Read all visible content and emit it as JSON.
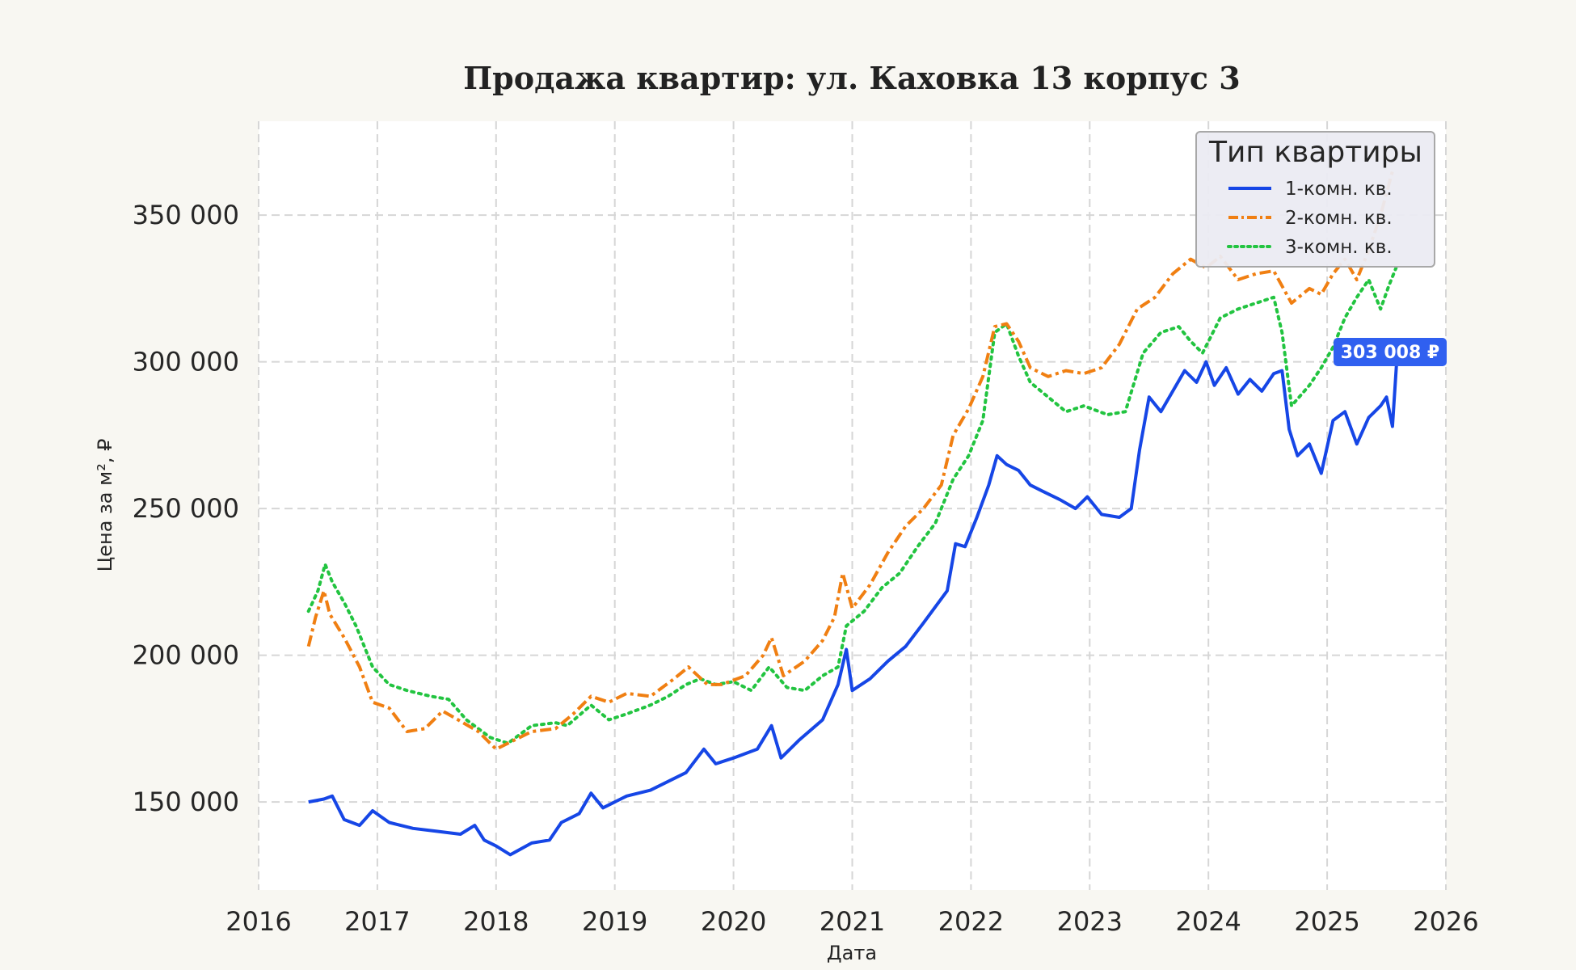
{
  "chart_data": {
    "type": "line",
    "title": "Продажа квартир: ул. Каховка 13 корпус 3",
    "xlabel": "Дата",
    "ylabel": "Цена за м², ₽",
    "xlim": [
      2016,
      2026
    ],
    "ylim": [
      120000,
      382000
    ],
    "x_ticks": [
      "2016",
      "2017",
      "2018",
      "2019",
      "2020",
      "2021",
      "2022",
      "2023",
      "2024",
      "2025",
      "2026"
    ],
    "y_ticks": [
      "150 000",
      "200 000",
      "250 000",
      "300 000",
      "350 000"
    ],
    "y_tick_values": [
      150000,
      200000,
      250000,
      300000,
      350000
    ],
    "grid": true,
    "legend": {
      "title": "Тип квартиры",
      "placement": "top-right"
    },
    "series": [
      {
        "name": "1-комн. кв.",
        "color": "#1646e6",
        "style": "solid",
        "last_label": "303 008 ₽",
        "points": [
          [
            2016.42,
            150000
          ],
          [
            2016.55,
            151000
          ],
          [
            2016.62,
            152000
          ],
          [
            2016.72,
            144000
          ],
          [
            2016.85,
            142000
          ],
          [
            2016.96,
            147000
          ],
          [
            2017.1,
            143000
          ],
          [
            2017.3,
            141000
          ],
          [
            2017.5,
            140000
          ],
          [
            2017.7,
            139000
          ],
          [
            2017.82,
            142000
          ],
          [
            2017.9,
            137000
          ],
          [
            2018.0,
            135000
          ],
          [
            2018.12,
            132000
          ],
          [
            2018.3,
            136000
          ],
          [
            2018.45,
            137000
          ],
          [
            2018.55,
            143000
          ],
          [
            2018.7,
            146000
          ],
          [
            2018.8,
            153000
          ],
          [
            2018.9,
            148000
          ],
          [
            2019.1,
            152000
          ],
          [
            2019.3,
            154000
          ],
          [
            2019.5,
            158000
          ],
          [
            2019.6,
            160000
          ],
          [
            2019.75,
            168000
          ],
          [
            2019.85,
            163000
          ],
          [
            2020.0,
            165000
          ],
          [
            2020.2,
            168000
          ],
          [
            2020.32,
            176000
          ],
          [
            2020.4,
            165000
          ],
          [
            2020.55,
            171000
          ],
          [
            2020.75,
            178000
          ],
          [
            2020.88,
            190000
          ],
          [
            2020.95,
            202000
          ],
          [
            2021.0,
            188000
          ],
          [
            2021.15,
            192000
          ],
          [
            2021.3,
            198000
          ],
          [
            2021.45,
            203000
          ],
          [
            2021.6,
            211000
          ],
          [
            2021.8,
            222000
          ],
          [
            2021.87,
            238000
          ],
          [
            2021.95,
            237000
          ],
          [
            2022.05,
            247000
          ],
          [
            2022.15,
            258000
          ],
          [
            2022.22,
            268000
          ],
          [
            2022.3,
            265000
          ],
          [
            2022.4,
            263000
          ],
          [
            2022.5,
            258000
          ],
          [
            2022.6,
            256000
          ],
          [
            2022.75,
            253000
          ],
          [
            2022.88,
            250000
          ],
          [
            2022.98,
            254000
          ],
          [
            2023.1,
            248000
          ],
          [
            2023.25,
            247000
          ],
          [
            2023.35,
            250000
          ],
          [
            2023.42,
            270000
          ],
          [
            2023.5,
            288000
          ],
          [
            2023.6,
            283000
          ],
          [
            2023.7,
            290000
          ],
          [
            2023.8,
            297000
          ],
          [
            2023.9,
            293000
          ],
          [
            2023.98,
            300000
          ],
          [
            2024.05,
            292000
          ],
          [
            2024.15,
            298000
          ],
          [
            2024.25,
            289000
          ],
          [
            2024.35,
            294000
          ],
          [
            2024.45,
            290000
          ],
          [
            2024.55,
            296000
          ],
          [
            2024.62,
            297000
          ],
          [
            2024.68,
            277000
          ],
          [
            2024.75,
            268000
          ],
          [
            2024.85,
            272000
          ],
          [
            2024.95,
            262000
          ],
          [
            2025.05,
            280000
          ],
          [
            2025.15,
            283000
          ],
          [
            2025.25,
            272000
          ],
          [
            2025.35,
            281000
          ],
          [
            2025.45,
            285000
          ],
          [
            2025.5,
            288000
          ],
          [
            2025.55,
            278000
          ],
          [
            2025.59,
            303008
          ]
        ]
      },
      {
        "name": "2-комн. кв.",
        "color": "#f07f12",
        "style": "dashdot",
        "points": [
          [
            2016.42,
            203000
          ],
          [
            2016.48,
            213000
          ],
          [
            2016.55,
            222000
          ],
          [
            2016.6,
            214000
          ],
          [
            2016.72,
            206000
          ],
          [
            2016.85,
            196000
          ],
          [
            2016.96,
            184000
          ],
          [
            2017.1,
            182000
          ],
          [
            2017.25,
            174000
          ],
          [
            2017.4,
            175000
          ],
          [
            2017.55,
            181000
          ],
          [
            2017.68,
            178000
          ],
          [
            2017.85,
            174000
          ],
          [
            2018.0,
            168000
          ],
          [
            2018.15,
            171000
          ],
          [
            2018.3,
            174000
          ],
          [
            2018.5,
            175000
          ],
          [
            2018.65,
            180000
          ],
          [
            2018.8,
            186000
          ],
          [
            2018.95,
            184000
          ],
          [
            2019.1,
            187000
          ],
          [
            2019.3,
            186000
          ],
          [
            2019.5,
            192000
          ],
          [
            2019.62,
            196000
          ],
          [
            2019.78,
            190000
          ],
          [
            2019.9,
            190000
          ],
          [
            2020.1,
            193000
          ],
          [
            2020.25,
            200000
          ],
          [
            2020.32,
            206000
          ],
          [
            2020.42,
            193000
          ],
          [
            2020.6,
            198000
          ],
          [
            2020.75,
            205000
          ],
          [
            2020.85,
            213000
          ],
          [
            2020.92,
            228000
          ],
          [
            2021.0,
            216000
          ],
          [
            2021.15,
            224000
          ],
          [
            2021.3,
            235000
          ],
          [
            2021.45,
            244000
          ],
          [
            2021.6,
            250000
          ],
          [
            2021.75,
            258000
          ],
          [
            2021.85,
            275000
          ],
          [
            2021.98,
            284000
          ],
          [
            2022.1,
            295000
          ],
          [
            2022.2,
            312000
          ],
          [
            2022.3,
            313000
          ],
          [
            2022.4,
            307000
          ],
          [
            2022.5,
            298000
          ],
          [
            2022.65,
            295000
          ],
          [
            2022.8,
            297000
          ],
          [
            2022.95,
            296000
          ],
          [
            2023.1,
            298000
          ],
          [
            2023.25,
            306000
          ],
          [
            2023.4,
            318000
          ],
          [
            2023.55,
            322000
          ],
          [
            2023.7,
            330000
          ],
          [
            2023.85,
            335000
          ],
          [
            2023.98,
            332000
          ],
          [
            2024.1,
            336000
          ],
          [
            2024.25,
            328000
          ],
          [
            2024.4,
            330000
          ],
          [
            2024.55,
            331000
          ],
          [
            2024.7,
            320000
          ],
          [
            2024.85,
            325000
          ],
          [
            2024.95,
            323000
          ],
          [
            2025.05,
            330000
          ],
          [
            2025.15,
            335000
          ],
          [
            2025.25,
            328000
          ],
          [
            2025.35,
            338000
          ],
          [
            2025.45,
            350000
          ],
          [
            2025.55,
            365000
          ]
        ]
      },
      {
        "name": "3-комн. кв.",
        "color": "#22c440",
        "style": "dotted",
        "points": [
          [
            2016.42,
            215000
          ],
          [
            2016.5,
            222000
          ],
          [
            2016.56,
            231000
          ],
          [
            2016.62,
            225000
          ],
          [
            2016.72,
            218000
          ],
          [
            2016.82,
            210000
          ],
          [
            2016.96,
            196000
          ],
          [
            2017.1,
            190000
          ],
          [
            2017.25,
            188000
          ],
          [
            2017.45,
            186000
          ],
          [
            2017.6,
            185000
          ],
          [
            2017.75,
            178000
          ],
          [
            2017.95,
            172000
          ],
          [
            2018.1,
            170000
          ],
          [
            2018.3,
            176000
          ],
          [
            2018.5,
            177000
          ],
          [
            2018.6,
            176000
          ],
          [
            2018.8,
            183000
          ],
          [
            2018.95,
            178000
          ],
          [
            2019.1,
            180000
          ],
          [
            2019.3,
            183000
          ],
          [
            2019.45,
            186000
          ],
          [
            2019.6,
            190000
          ],
          [
            2019.72,
            192000
          ],
          [
            2019.85,
            190000
          ],
          [
            2020.0,
            191000
          ],
          [
            2020.15,
            188000
          ],
          [
            2020.3,
            196000
          ],
          [
            2020.45,
            189000
          ],
          [
            2020.6,
            188000
          ],
          [
            2020.75,
            193000
          ],
          [
            2020.88,
            196000
          ],
          [
            2020.95,
            210000
          ],
          [
            2021.1,
            215000
          ],
          [
            2021.25,
            223000
          ],
          [
            2021.4,
            228000
          ],
          [
            2021.55,
            237000
          ],
          [
            2021.7,
            245000
          ],
          [
            2021.85,
            260000
          ],
          [
            2021.98,
            268000
          ],
          [
            2022.1,
            280000
          ],
          [
            2022.2,
            310000
          ],
          [
            2022.3,
            313000
          ],
          [
            2022.4,
            302000
          ],
          [
            2022.5,
            293000
          ],
          [
            2022.65,
            288000
          ],
          [
            2022.8,
            283000
          ],
          [
            2022.95,
            285000
          ],
          [
            2023.15,
            282000
          ],
          [
            2023.3,
            283000
          ],
          [
            2023.45,
            303000
          ],
          [
            2023.6,
            310000
          ],
          [
            2023.75,
            312000
          ],
          [
            2023.85,
            307000
          ],
          [
            2023.95,
            303000
          ],
          [
            2024.1,
            315000
          ],
          [
            2024.25,
            318000
          ],
          [
            2024.4,
            320000
          ],
          [
            2024.55,
            322000
          ],
          [
            2024.62,
            310000
          ],
          [
            2024.7,
            285000
          ],
          [
            2024.85,
            292000
          ],
          [
            2024.95,
            298000
          ],
          [
            2025.05,
            305000
          ],
          [
            2025.15,
            315000
          ],
          [
            2025.25,
            322000
          ],
          [
            2025.35,
            328000
          ],
          [
            2025.45,
            318000
          ],
          [
            2025.52,
            326000
          ],
          [
            2025.58,
            332000
          ]
        ]
      }
    ]
  }
}
